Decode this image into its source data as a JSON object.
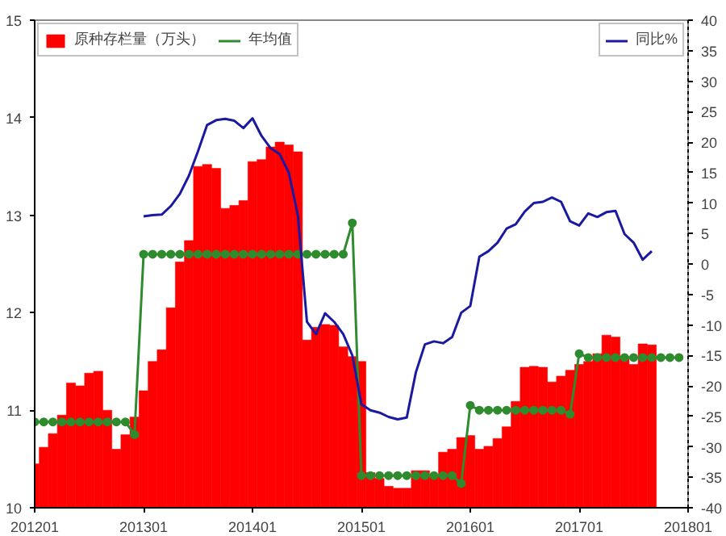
{
  "chart_data": {
    "type": "bar",
    "xlim": [
      "2012-01",
      "2018-01"
    ],
    "xticks": [
      {
        "value": "2012-01",
        "label": "201201"
      },
      {
        "value": "2013-01",
        "label": "201301"
      },
      {
        "value": "2014-01",
        "label": "201401"
      },
      {
        "value": "2015-01",
        "label": "201501"
      },
      {
        "value": "2016-01",
        "label": "201601"
      },
      {
        "value": "2017-01",
        "label": "201701"
      },
      {
        "value": "2018-01",
        "label": "201801"
      }
    ],
    "ylim": [
      10,
      15
    ],
    "yticks": [
      10,
      11,
      12,
      13,
      14,
      15
    ],
    "y2lim": [
      -40,
      40
    ],
    "y2ticks": [
      -40,
      -35,
      -30,
      -25,
      -20,
      -15,
      -10,
      -5,
      0,
      5,
      10,
      15,
      20,
      25,
      30,
      35,
      40
    ],
    "grid": false,
    "legend": "top",
    "series": [
      {
        "name": "原种存栏量（万头）",
        "color": "#ff0000",
        "x": [
          "2012-01",
          "2012-02",
          "2012-03",
          "2012-04",
          "2012-05",
          "2012-06",
          "2012-07",
          "2012-08",
          "2012-09",
          "2012-10",
          "2012-11",
          "2012-12",
          "2013-01",
          "2013-02",
          "2013-03",
          "2013-04",
          "2013-05",
          "2013-06",
          "2013-07",
          "2013-08",
          "2013-09",
          "2013-10",
          "2013-11",
          "2013-12",
          "2014-01",
          "2014-02",
          "2014-03",
          "2014-04",
          "2014-05",
          "2014-06",
          "2014-07",
          "2014-08",
          "2014-09",
          "2014-10",
          "2014-11",
          "2014-12",
          "2015-01",
          "2015-02",
          "2015-03",
          "2015-04",
          "2015-05",
          "2015-06",
          "2015-07",
          "2015-08",
          "2015-09",
          "2015-10",
          "2015-11",
          "2015-12",
          "2016-01",
          "2016-02",
          "2016-03",
          "2016-04",
          "2016-05",
          "2016-06",
          "2016-07",
          "2016-08",
          "2016-09",
          "2016-10",
          "2016-11",
          "2016-12",
          "2017-01",
          "2017-02",
          "2017-03",
          "2017-04",
          "2017-05",
          "2017-06",
          "2017-07",
          "2017-08",
          "2017-09"
        ],
        "values": [
          10.45,
          10.62,
          10.76,
          10.95,
          11.28,
          11.25,
          11.38,
          11.4,
          11.0,
          10.6,
          10.75,
          10.93,
          11.2,
          11.5,
          11.62,
          12.05,
          12.52,
          12.74,
          13.5,
          13.52,
          13.48,
          13.07,
          13.1,
          13.15,
          13.55,
          13.57,
          13.7,
          13.75,
          13.72,
          13.65,
          11.72,
          11.85,
          11.88,
          11.87,
          11.65,
          11.55,
          11.5,
          10.36,
          10.3,
          10.22,
          10.2,
          10.2,
          10.38,
          10.38,
          10.32,
          10.57,
          10.6,
          10.72,
          10.74,
          10.6,
          10.63,
          10.71,
          10.83,
          11.09,
          11.44,
          11.45,
          11.44,
          11.29,
          11.35,
          11.41,
          11.47,
          11.5,
          11.58,
          11.77,
          11.75,
          11.55,
          11.47,
          11.68,
          11.67
        ]
      },
      {
        "name": "年均值",
        "type": "line",
        "color": "#2e8b2e",
        "marker": "circle",
        "x": [
          "2012-01",
          "2012-02",
          "2012-03",
          "2012-04",
          "2012-05",
          "2012-06",
          "2012-07",
          "2012-08",
          "2012-09",
          "2012-10",
          "2012-11",
          "2012-12",
          "2013-01",
          "2013-02",
          "2013-03",
          "2013-04",
          "2013-05",
          "2013-06",
          "2013-07",
          "2013-08",
          "2013-09",
          "2013-10",
          "2013-11",
          "2013-12",
          "2014-01",
          "2014-02",
          "2014-03",
          "2014-04",
          "2014-05",
          "2014-06",
          "2014-07",
          "2014-08",
          "2014-09",
          "2014-10",
          "2014-11",
          "2014-12",
          "2015-01",
          "2015-02",
          "2015-03",
          "2015-04",
          "2015-05",
          "2015-06",
          "2015-07",
          "2015-08",
          "2015-09",
          "2015-10",
          "2015-11",
          "2015-12",
          "2016-01",
          "2016-02",
          "2016-03",
          "2016-04",
          "2016-05",
          "2016-06",
          "2016-07",
          "2016-08",
          "2016-09",
          "2016-10",
          "2016-11",
          "2016-12",
          "2017-01",
          "2017-02",
          "2017-03",
          "2017-04",
          "2017-05",
          "2017-06",
          "2017-07",
          "2017-08",
          "2017-09",
          "2017-10",
          "2017-11",
          "2017-12"
        ],
        "values": [
          10.88,
          10.88,
          10.88,
          10.88,
          10.88,
          10.88,
          10.88,
          10.88,
          10.88,
          10.88,
          10.88,
          10.75,
          12.6,
          12.6,
          12.6,
          12.6,
          12.6,
          12.6,
          12.6,
          12.6,
          12.6,
          12.6,
          12.6,
          12.6,
          12.6,
          12.6,
          12.6,
          12.6,
          12.6,
          12.6,
          12.6,
          12.6,
          12.6,
          12.6,
          12.6,
          12.92,
          10.33,
          10.33,
          10.33,
          10.33,
          10.33,
          10.33,
          10.33,
          10.33,
          10.33,
          10.33,
          10.33,
          10.25,
          11.05,
          11.0,
          11.0,
          11.0,
          11.0,
          11.0,
          11.0,
          11.0,
          11.0,
          11.0,
          11.0,
          10.96,
          11.58,
          11.54,
          11.54,
          11.54,
          11.54,
          11.54,
          11.54,
          11.54,
          11.54,
          11.54,
          11.54,
          11.54
        ]
      },
      {
        "name": "同比%",
        "type": "line",
        "axis": "y2",
        "color": "#1a1aa0",
        "x": [
          "2013-01",
          "2013-02",
          "2013-03",
          "2013-04",
          "2013-05",
          "2013-06",
          "2013-07",
          "2013-08",
          "2013-09",
          "2013-10",
          "2013-11",
          "2013-12",
          "2014-01",
          "2014-02",
          "2014-03",
          "2014-04",
          "2014-05",
          "2014-06",
          "2014-07",
          "2014-08",
          "2014-09",
          "2014-10",
          "2014-11",
          "2014-12",
          "2015-01",
          "2015-02",
          "2015-03",
          "2015-04",
          "2015-05",
          "2015-06",
          "2015-07",
          "2015-08",
          "2015-09",
          "2015-10",
          "2015-11",
          "2015-12",
          "2016-01",
          "2016-02",
          "2016-03",
          "2016-04",
          "2016-05",
          "2016-06",
          "2016-07",
          "2016-08",
          "2016-09",
          "2016-10",
          "2016-11",
          "2016-12",
          "2017-01",
          "2017-02",
          "2017-03",
          "2017-04",
          "2017-05",
          "2017-06",
          "2017-07",
          "2017-08",
          "2017-09"
        ],
        "values": [
          7.8,
          8.0,
          8.1,
          9.5,
          11.5,
          14.5,
          18.5,
          22.8,
          23.6,
          23.8,
          23.5,
          22.3,
          23.9,
          21.0,
          19.0,
          18.0,
          15.0,
          8.0,
          -9.5,
          -11.5,
          -8.1,
          -9.5,
          -11.5,
          -15.0,
          -23.0,
          -24.0,
          -24.4,
          -25.1,
          -25.5,
          -25.2,
          -17.8,
          -13.2,
          -12.7,
          -13.0,
          -12.0,
          -8.0,
          -6.9,
          1.2,
          2.1,
          3.5,
          5.8,
          6.5,
          8.6,
          10.0,
          10.2,
          10.9,
          10.2,
          7.0,
          6.3,
          8.3,
          7.7,
          8.5,
          8.7,
          4.9,
          3.5,
          0.7,
          2.1
        ]
      }
    ]
  }
}
